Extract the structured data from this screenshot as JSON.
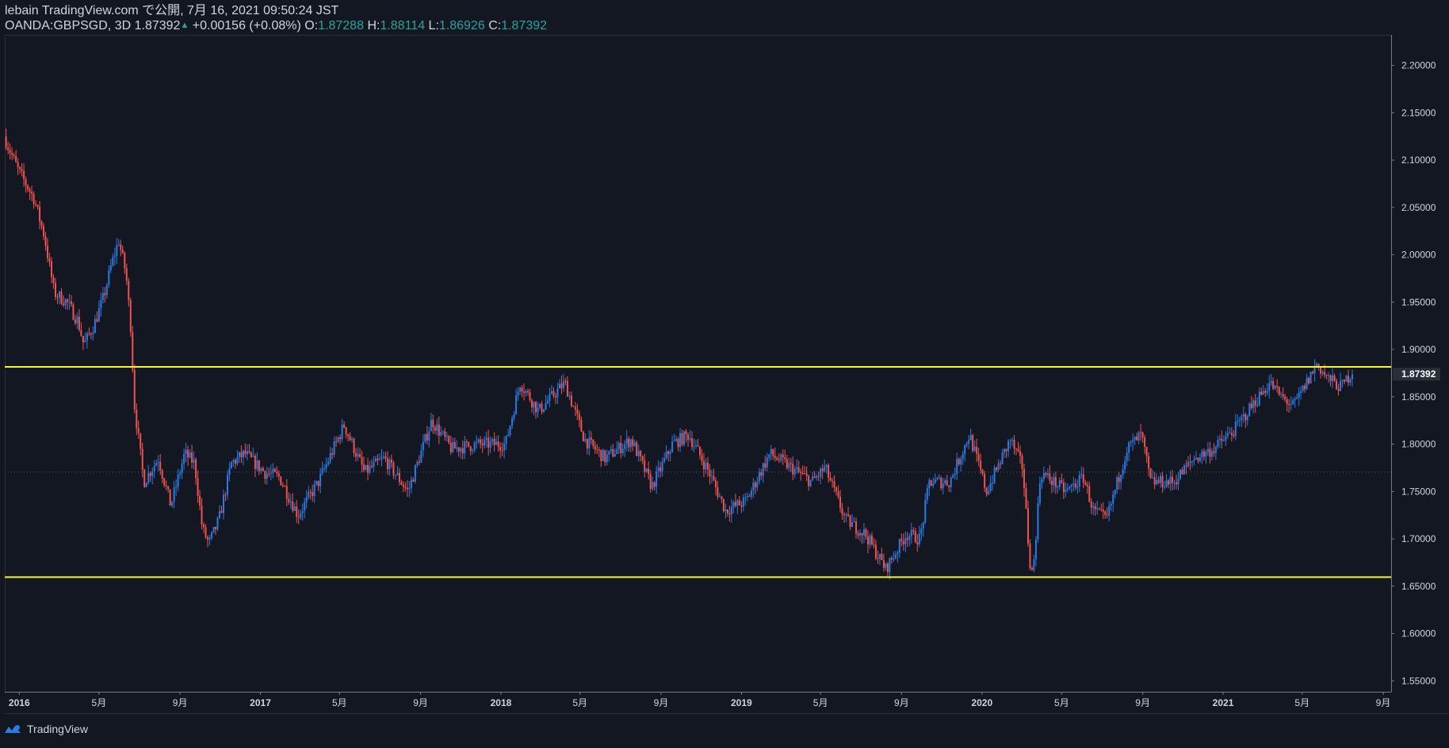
{
  "header": {
    "published_line": "lebain TradingView.com で公開, 7月 16, 2021 09:50:24 JST",
    "symbol": "OANDA:GBPSGD, 3D",
    "last_price": "1.87392",
    "change": "+0.00156 (+0.08%)",
    "o_label": "O:",
    "o_value": "1.87288",
    "h_label": "H:",
    "h_value": "1.88114",
    "l_label": "L:",
    "l_value": "1.86926",
    "c_label": "C:",
    "c_value": "1.87392"
  },
  "footer": {
    "brand": "TradingView",
    "logo_icon": "tradingview-logo-icon"
  },
  "colors": {
    "background": "#131722",
    "up": "#2a7be4",
    "down": "#ef5350",
    "level_line": "#f7f725",
    "grid_dotted": "#4a4f5c",
    "price_tag_bg": "#2a2e39"
  },
  "chart_data": {
    "type": "candlestick",
    "symbol": "OANDA:GBPSGD",
    "timeframe": "3D",
    "x_tick_labels": [
      "2016",
      "5月",
      "9月",
      "2017",
      "5月",
      "9月",
      "2018",
      "5月",
      "9月",
      "2019",
      "5月",
      "9月",
      "2020",
      "5月",
      "9月",
      "2021",
      "5月",
      "9月"
    ],
    "x_ticks": [
      "2016-01",
      "2016-05",
      "2016-09",
      "2017-01",
      "2017-05",
      "2017-09",
      "2018-01",
      "2018-05",
      "2018-09",
      "2019-01",
      "2019-05",
      "2019-09",
      "2020-01",
      "2020-05",
      "2020-09",
      "2021-01",
      "2021-05",
      "2021-09"
    ],
    "y_tick_labels": [
      "2.20000",
      "2.15000",
      "2.10000",
      "2.05000",
      "2.00000",
      "1.95000",
      "1.90000",
      "1.85000",
      "1.80000",
      "1.75000",
      "1.70000",
      "1.65000",
      "1.60000",
      "1.55000"
    ],
    "ylim": [
      1.5385,
      2.2323
    ],
    "xlim": [
      "2015-12-10",
      "2021-09-13"
    ],
    "last_price_label": "1.87392",
    "horizontal_levels": [
      1.8816,
      1.6595
    ],
    "dotted_level": 1.7705,
    "path_points": [
      [
        "2015-12-11",
        2.125
      ],
      [
        "2016-01-01",
        2.09
      ],
      [
        "2016-01-25",
        2.06
      ],
      [
        "2016-02-10",
        2.02
      ],
      [
        "2016-02-25",
        1.96
      ],
      [
        "2016-03-15",
        1.95
      ],
      [
        "2016-04-01",
        1.93
      ],
      [
        "2016-04-10",
        1.905
      ],
      [
        "2016-04-25",
        1.925
      ],
      [
        "2016-05-10",
        1.955
      ],
      [
        "2016-05-22",
        1.99
      ],
      [
        "2016-06-02",
        2.015
      ],
      [
        "2016-06-13",
        1.98
      ],
      [
        "2016-06-20",
        1.925
      ],
      [
        "2016-06-26",
        1.84
      ],
      [
        "2016-07-10",
        1.76
      ],
      [
        "2016-08-01",
        1.785
      ],
      [
        "2016-08-20",
        1.735
      ],
      [
        "2016-09-10",
        1.79
      ],
      [
        "2016-09-25",
        1.78
      ],
      [
        "2016-10-07",
        1.71
      ],
      [
        "2016-10-17",
        1.695
      ],
      [
        "2016-11-01",
        1.72
      ],
      [
        "2016-11-20",
        1.78
      ],
      [
        "2016-12-10",
        1.79
      ],
      [
        "2017-01-10",
        1.77
      ],
      [
        "2017-02-01",
        1.765
      ],
      [
        "2017-03-01",
        1.725
      ],
      [
        "2017-04-01",
        1.76
      ],
      [
        "2017-05-10",
        1.82
      ],
      [
        "2017-06-10",
        1.77
      ],
      [
        "2017-07-10",
        1.785
      ],
      [
        "2017-08-15",
        1.75
      ],
      [
        "2017-09-20",
        1.825
      ],
      [
        "2017-10-20",
        1.795
      ],
      [
        "2017-12-01",
        1.8
      ],
      [
        "2018-01-10",
        1.8
      ],
      [
        "2018-02-01",
        1.865
      ],
      [
        "2018-03-01",
        1.835
      ],
      [
        "2018-04-10",
        1.865
      ],
      [
        "2018-05-10",
        1.805
      ],
      [
        "2018-06-10",
        1.785
      ],
      [
        "2018-07-20",
        1.805
      ],
      [
        "2018-08-20",
        1.755
      ],
      [
        "2018-09-20",
        1.8
      ],
      [
        "2018-10-15",
        1.81
      ],
      [
        "2018-11-15",
        1.77
      ],
      [
        "2018-12-10",
        1.73
      ],
      [
        "2019-01-10",
        1.74
      ],
      [
        "2019-02-15",
        1.79
      ],
      [
        "2019-03-20",
        1.775
      ],
      [
        "2019-04-20",
        1.76
      ],
      [
        "2019-05-10",
        1.775
      ],
      [
        "2019-06-10",
        1.72
      ],
      [
        "2019-07-10",
        1.705
      ],
      [
        "2019-08-10",
        1.668
      ],
      [
        "2019-09-10",
        1.705
      ],
      [
        "2019-10-01",
        1.7
      ],
      [
        "2019-10-15",
        1.76
      ],
      [
        "2019-11-15",
        1.76
      ],
      [
        "2019-12-15",
        1.81
      ],
      [
        "2020-01-10",
        1.75
      ],
      [
        "2020-02-15",
        1.805
      ],
      [
        "2020-03-05",
        1.775
      ],
      [
        "2020-03-15",
        1.68
      ],
      [
        "2020-03-20",
        1.66
      ],
      [
        "2020-04-01",
        1.77
      ],
      [
        "2020-05-10",
        1.75
      ],
      [
        "2020-06-05",
        1.765
      ],
      [
        "2020-06-20",
        1.73
      ],
      [
        "2020-07-10",
        1.72
      ],
      [
        "2020-08-10",
        1.795
      ],
      [
        "2020-09-01",
        1.81
      ],
      [
        "2020-09-15",
        1.76
      ],
      [
        "2020-10-20",
        1.76
      ],
      [
        "2020-11-20",
        1.785
      ],
      [
        "2020-12-20",
        1.795
      ],
      [
        "2021-01-20",
        1.815
      ],
      [
        "2021-02-15",
        1.84
      ],
      [
        "2021-03-15",
        1.865
      ],
      [
        "2021-04-01",
        1.85
      ],
      [
        "2021-04-20",
        1.84
      ],
      [
        "2021-05-10",
        1.865
      ],
      [
        "2021-05-25",
        1.885
      ],
      [
        "2021-06-10",
        1.87
      ],
      [
        "2021-07-01",
        1.86
      ],
      [
        "2021-07-15",
        1.8739
      ]
    ]
  }
}
